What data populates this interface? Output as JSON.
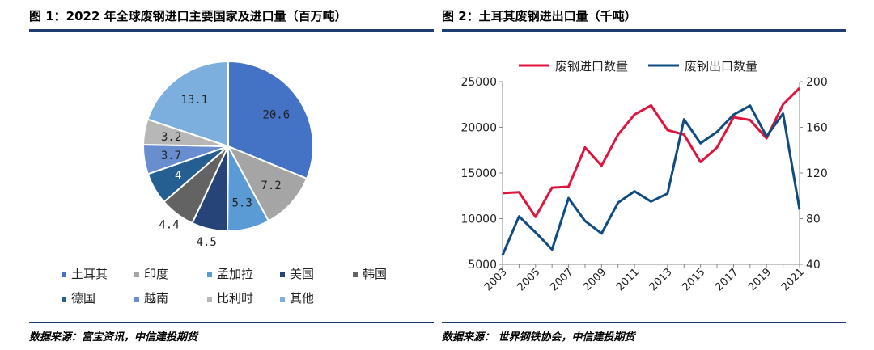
{
  "figure1": {
    "title": "图 1：2022 年全球废钢进口主要国家及进口量（百万吨）",
    "source": "数据来源：富宝资讯，中信建投期货"
  },
  "figure2": {
    "title": "图 2：土耳其废钢进出口量（千吨）",
    "source": "数据来源： 世界钢铁协会，中信建投期货"
  },
  "chart_data": [
    {
      "type": "pie",
      "slices": [
        {
          "label": "土耳其",
          "value": 20.6,
          "value_text": "20.6",
          "color": "#4472c4"
        },
        {
          "label": "印度",
          "value": 7.2,
          "value_text": "7.2",
          "color": "#a5a5a5"
        },
        {
          "label": "孟加拉",
          "value": 5.3,
          "value_text": "5.3",
          "color": "#5b9bd5"
        },
        {
          "label": "美国",
          "value": 4.5,
          "value_text": "4.5",
          "color": "#264478"
        },
        {
          "label": "韩国",
          "value": 4.4,
          "value_text": "4.4",
          "color": "#636363"
        },
        {
          "label": "德国",
          "value": 4.0,
          "value_text": "4",
          "color": "#255e91"
        },
        {
          "label": "越南",
          "value": 3.7,
          "value_text": "3.7",
          "color": "#698ed0"
        },
        {
          "label": "比利时",
          "value": 3.2,
          "value_text": "3.2",
          "color": "#b7b7b7"
        },
        {
          "label": "其他",
          "value": 13.1,
          "value_text": "13.1",
          "color": "#7cafdd"
        }
      ],
      "legend_position": "bottom"
    },
    {
      "type": "line",
      "x": [
        2003,
        2004,
        2005,
        2006,
        2007,
        2008,
        2009,
        2010,
        2011,
        2012,
        2013,
        2014,
        2015,
        2016,
        2017,
        2018,
        2019,
        2020,
        2021
      ],
      "x_ticks": [
        "2003",
        "2005",
        "2007",
        "2009",
        "2011",
        "2013",
        "2015",
        "2017",
        "2019",
        "2021"
      ],
      "series": [
        {
          "name": "废钢进口数量",
          "axis": "left",
          "color": "#e0143c",
          "values": [
            12800,
            12900,
            10200,
            13400,
            13500,
            17800,
            15800,
            19200,
            21400,
            22400,
            19700,
            19200,
            16200,
            17800,
            21100,
            20800,
            18800,
            22500,
            24300
          ]
        },
        {
          "name": "废钢出口数量",
          "axis": "right",
          "color": "#0f4c81",
          "values": [
            48,
            82,
            68,
            53,
            98,
            78,
            67,
            94,
            104,
            95,
            102,
            167,
            146,
            156,
            171,
            179,
            152,
            172,
            88
          ]
        }
      ],
      "y_left": {
        "range": [
          5000,
          25000
        ],
        "ticks": [
          "5000",
          "10000",
          "15000",
          "20000",
          "25000"
        ]
      },
      "y_right": {
        "range": [
          40,
          200
        ],
        "ticks": [
          "40",
          "80",
          "120",
          "160",
          "200"
        ]
      },
      "legend_position": "top"
    }
  ]
}
